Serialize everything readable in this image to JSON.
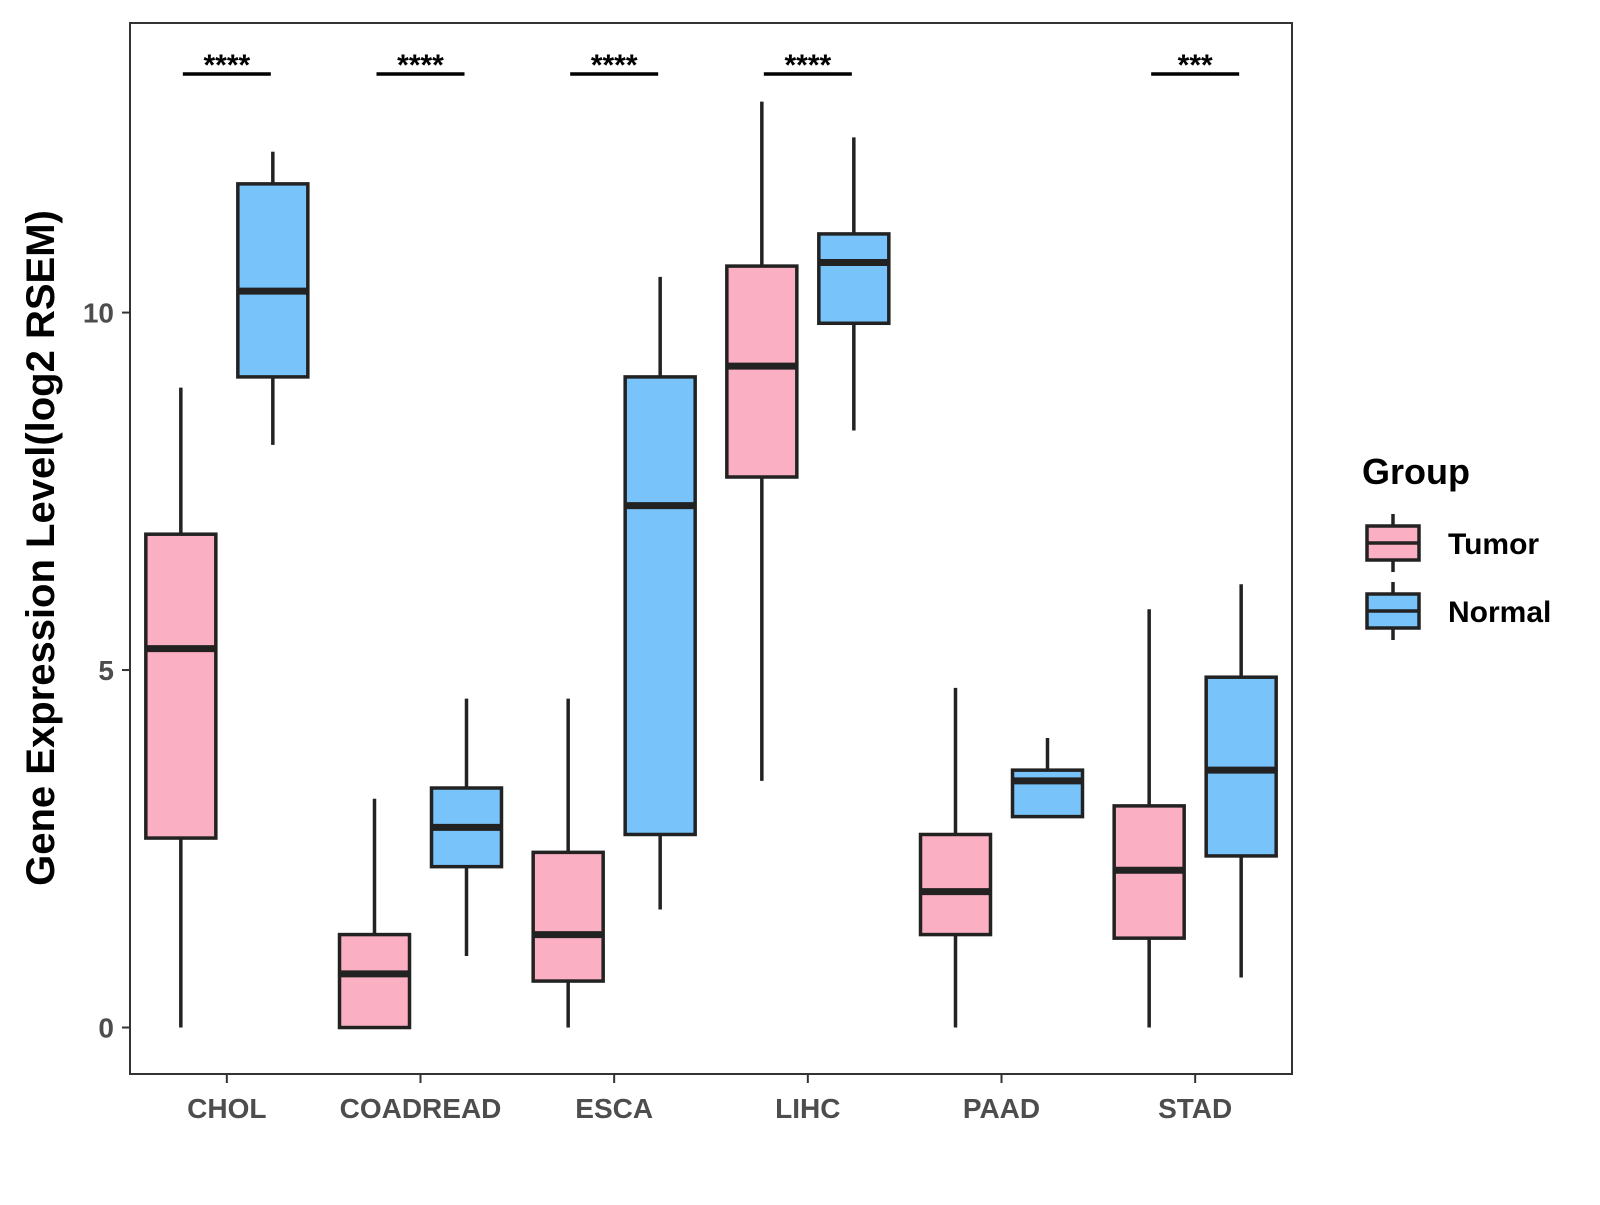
{
  "chart_data": {
    "type": "boxplot",
    "title": "",
    "xlabel": "",
    "ylabel": "Gene Expression Level(log2 RSEM)",
    "ylim": [
      -0.65,
      14.05
    ],
    "yticks": [
      0,
      5,
      10
    ],
    "grid": false,
    "legend_position": "right",
    "legend_title": "Group",
    "categories": [
      "CHOL",
      "COADREAD",
      "ESCA",
      "LIHC",
      "PAAD",
      "STAD"
    ],
    "series": [
      {
        "name": "Tumor",
        "color": "#FBAFC2",
        "boxes": [
          {
            "min": 0.0,
            "q1": 2.65,
            "median": 5.3,
            "q3": 6.9,
            "max": 8.95
          },
          {
            "min": 0.0,
            "q1": 0.0,
            "median": 0.75,
            "q3": 1.3,
            "max": 3.2
          },
          {
            "min": 0.0,
            "q1": 0.65,
            "median": 1.3,
            "q3": 2.45,
            "max": 4.6
          },
          {
            "min": 3.45,
            "q1": 7.7,
            "median": 9.25,
            "q3": 10.65,
            "max": 12.95
          },
          {
            "min": 0.0,
            "q1": 1.3,
            "median": 1.9,
            "q3": 2.7,
            "max": 4.75
          },
          {
            "min": 0.0,
            "q1": 1.25,
            "median": 2.2,
            "q3": 3.1,
            "max": 5.85
          }
        ]
      },
      {
        "name": "Normal",
        "color": "#78C3F9",
        "boxes": [
          {
            "min": 8.15,
            "q1": 9.1,
            "median": 10.3,
            "q3": 11.8,
            "max": 12.25
          },
          {
            "min": 1.0,
            "q1": 2.25,
            "median": 2.8,
            "q3": 3.35,
            "max": 4.6
          },
          {
            "min": 1.65,
            "q1": 2.7,
            "median": 7.3,
            "q3": 9.1,
            "max": 10.5
          },
          {
            "min": 8.35,
            "q1": 9.85,
            "median": 10.7,
            "q3": 11.1,
            "max": 12.45
          },
          {
            "min": 2.95,
            "q1": 2.95,
            "median": 3.45,
            "q3": 3.6,
            "max": 4.05
          },
          {
            "min": 0.7,
            "q1": 2.4,
            "median": 3.6,
            "q3": 4.9,
            "max": 6.2
          }
        ]
      }
    ],
    "significance": [
      {
        "category": "CHOL",
        "label": "****"
      },
      {
        "category": "COADREAD",
        "label": "****"
      },
      {
        "category": "ESCA",
        "label": "****"
      },
      {
        "category": "LIHC",
        "label": "****"
      },
      {
        "category": "STAD",
        "label": "***"
      }
    ]
  }
}
